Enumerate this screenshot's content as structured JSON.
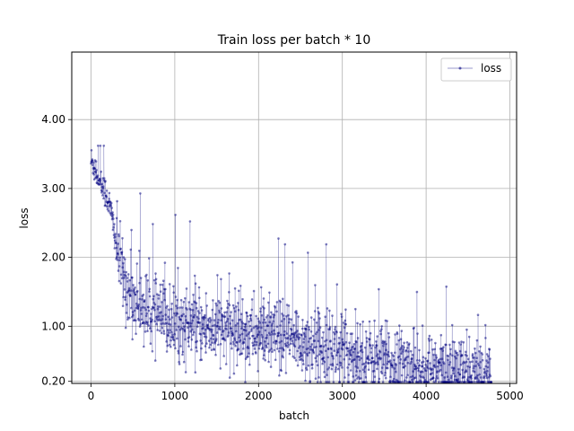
{
  "chart_data": {
    "type": "line",
    "title": "Train loss per batch * 10",
    "xlabel": "batch",
    "ylabel": "loss",
    "xlim": [
      -230,
      5080
    ],
    "ylim": [
      0.17,
      4.98
    ],
    "x_ticks": [
      0,
      1000,
      2000,
      3000,
      4000,
      5000
    ],
    "x_tick_labels": [
      "0",
      "1000",
      "2000",
      "3000",
      "4000",
      "5000"
    ],
    "y_ticks": [
      0.2,
      1.0,
      2.0,
      3.0,
      4.0
    ],
    "y_tick_labels": [
      "0.20",
      "1.00",
      "2.00",
      "3.00",
      "4.00"
    ],
    "grid": true,
    "legend_position": "top-right",
    "series": [
      {
        "name": "loss",
        "color": "#00007f",
        "x": [
          0,
          50,
          100,
          150,
          200,
          250,
          300,
          350,
          400,
          450,
          500,
          600,
          700,
          800,
          900,
          1000,
          1200,
          1400,
          1600,
          1800,
          2000,
          2200,
          2400,
          2600,
          2800,
          3000,
          3200,
          3400,
          3600,
          3800,
          4000,
          4200,
          4400,
          4600,
          4780
        ],
        "values": [
          3.4,
          3.3,
          3.1,
          3.0,
          2.85,
          2.6,
          2.2,
          1.9,
          1.65,
          1.5,
          1.4,
          1.3,
          1.2,
          1.15,
          1.1,
          1.05,
          1.0,
          0.98,
          0.95,
          0.92,
          0.88,
          0.84,
          0.8,
          0.75,
          0.7,
          0.64,
          0.58,
          0.52,
          0.47,
          0.42,
          0.38,
          0.35,
          0.33,
          0.32,
          0.31
        ]
      }
    ]
  }
}
